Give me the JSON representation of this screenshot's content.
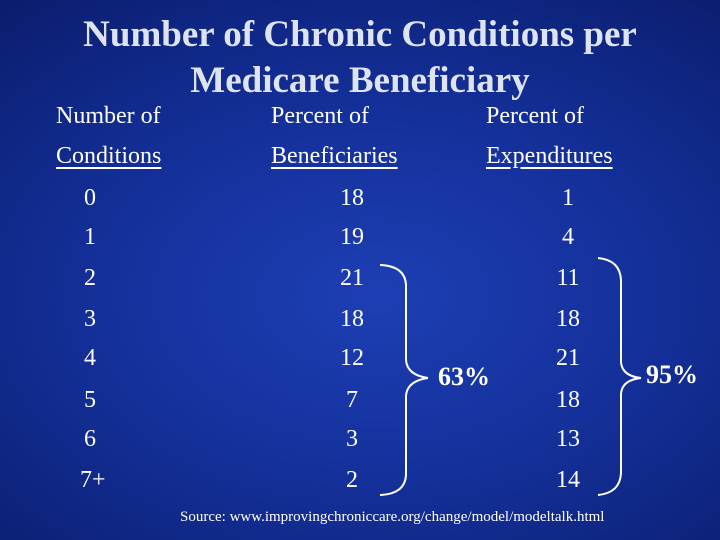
{
  "title_line1": "Number of Chronic Conditions per",
  "title_line2": "Medicare Beneficiary",
  "headers": {
    "col1_line1": "Number of",
    "col1_line2": "Conditions",
    "col2_line1": "Percent of",
    "col2_line2": "Beneficiaries",
    "col3_line1": "Percent of",
    "col3_line2": "Expenditures"
  },
  "rows": [
    {
      "conditions": "0",
      "beneficiaries": "18",
      "expenditures": "1"
    },
    {
      "conditions": "1",
      "beneficiaries": "19",
      "expenditures": "4"
    },
    {
      "conditions": "2",
      "beneficiaries": "21",
      "expenditures": "11"
    },
    {
      "conditions": "3",
      "beneficiaries": "18",
      "expenditures": "18"
    },
    {
      "conditions": "4",
      "beneficiaries": "12",
      "expenditures": "21"
    },
    {
      "conditions": "5",
      "beneficiaries": "7",
      "expenditures": "18"
    },
    {
      "conditions": "6",
      "beneficiaries": "3",
      "expenditures": "13"
    },
    {
      "conditions": "7+",
      "beneficiaries": "2",
      "expenditures": "14"
    }
  ],
  "bracket_beneficiaries_label": "63%",
  "bracket_expenditures_label": "95%",
  "source": "Source: www.improvingchroniccare.org/change/model/modeltalk.html",
  "colors": {
    "background": "#14309a",
    "text": "#ffffff"
  }
}
